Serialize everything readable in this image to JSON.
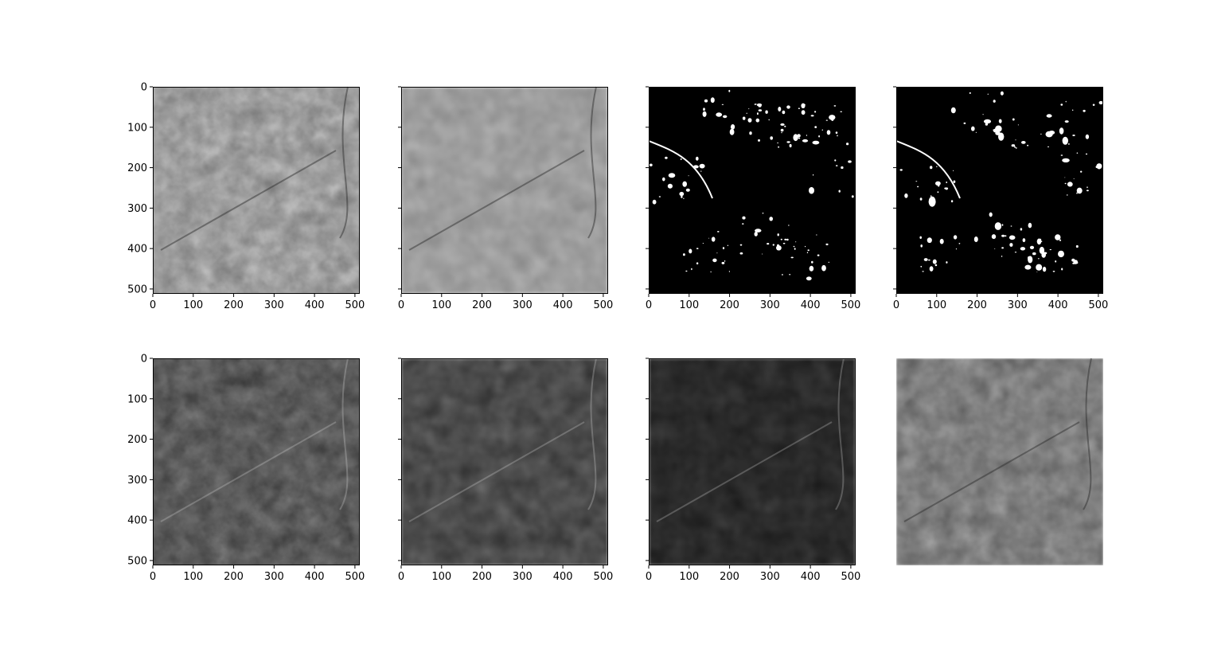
{
  "chart_data": [
    {
      "type": "heatmap",
      "colormap": "gray",
      "row": 1,
      "col": 1,
      "content": "grayscale satellite image (high detail)",
      "xlim": [
        0,
        512
      ],
      "ylim": [
        512,
        0
      ],
      "xticks": [
        0,
        100,
        200,
        300,
        400,
        500
      ],
      "yticks": [
        0,
        100,
        200,
        300,
        400,
        500
      ],
      "show_xticklabels": true,
      "show_yticklabels": true,
      "show_axes": true,
      "tone": {
        "mean": 0.62,
        "contrast": 0.26,
        "blur": 0.8
      }
    },
    {
      "type": "heatmap",
      "colormap": "gray",
      "row": 1,
      "col": 2,
      "content": "grayscale satellite image (smoothed)",
      "xlim": [
        0,
        512
      ],
      "ylim": [
        512,
        0
      ],
      "xticks": [
        0,
        100,
        200,
        300,
        400,
        500
      ],
      "yticks": [
        0,
        100,
        200,
        300,
        400,
        500
      ],
      "show_xticklabels": true,
      "show_yticklabels": false,
      "show_axes": true,
      "tone": {
        "mean": 0.62,
        "contrast": 0.16,
        "blur": 2.0
      }
    },
    {
      "type": "heatmap",
      "colormap": "gray",
      "row": 1,
      "col": 3,
      "content": "binary mask, sparse white patches on black",
      "xlim": [
        0,
        512
      ],
      "ylim": [
        512,
        0
      ],
      "xticks": [
        0,
        100,
        200,
        300,
        400,
        500
      ],
      "yticks": [
        0,
        100,
        200,
        300,
        400,
        500
      ],
      "show_xticklabels": true,
      "show_yticklabels": false,
      "show_axes": true,
      "mask": true
    },
    {
      "type": "heatmap",
      "colormap": "gray",
      "row": 1,
      "col": 4,
      "content": "binary mask, sparse white patches on black",
      "xlim": [
        0,
        512
      ],
      "ylim": [
        512,
        0
      ],
      "xticks": [
        0,
        100,
        200,
        300,
        400,
        500
      ],
      "yticks": [
        0,
        100,
        200,
        300,
        400,
        500
      ],
      "show_xticklabels": true,
      "show_yticklabels": false,
      "show_axes": true,
      "mask": true
    },
    {
      "type": "heatmap",
      "colormap": "gray",
      "row": 2,
      "col": 1,
      "content": "grayscale satellite image (dark, detailed)",
      "xlim": [
        0,
        512
      ],
      "ylim": [
        512,
        0
      ],
      "xticks": [
        0,
        100,
        200,
        300,
        400,
        500
      ],
      "yticks": [
        0,
        100,
        200,
        300,
        400,
        500
      ],
      "show_xticklabels": true,
      "show_yticklabels": true,
      "show_axes": true,
      "tone": {
        "mean": 0.36,
        "contrast": 0.24,
        "blur": 0.8
      }
    },
    {
      "type": "heatmap",
      "colormap": "gray",
      "row": 2,
      "col": 2,
      "content": "grayscale satellite image (dark, smoothed)",
      "xlim": [
        0,
        512
      ],
      "ylim": [
        512,
        0
      ],
      "xticks": [
        0,
        100,
        200,
        300,
        400,
        500
      ],
      "yticks": [
        0,
        100,
        200,
        300,
        400,
        500
      ],
      "show_xticklabels": true,
      "show_yticklabels": false,
      "show_axes": true,
      "tone": {
        "mean": 0.3,
        "contrast": 0.2,
        "blur": 1.8
      }
    },
    {
      "type": "heatmap",
      "colormap": "gray",
      "row": 2,
      "col": 3,
      "content": "grayscale satellite image (very dark, smoothed)",
      "xlim": [
        0,
        512
      ],
      "ylim": [
        512,
        0
      ],
      "xticks": [
        0,
        100,
        200,
        300,
        400,
        500
      ],
      "yticks": [
        0,
        100,
        200,
        300,
        400,
        500
      ],
      "show_xticklabels": true,
      "show_yticklabels": false,
      "show_axes": true,
      "tone": {
        "mean": 0.17,
        "contrast": 0.13,
        "blur": 1.8
      }
    },
    {
      "type": "heatmap",
      "colormap": "gray",
      "row": 2,
      "col": 4,
      "content": "grayscale satellite image (mid-tone), no axes",
      "xlim": [
        0,
        512
      ],
      "ylim": [
        512,
        0
      ],
      "show_xticklabels": false,
      "show_yticklabels": false,
      "show_axes": false,
      "tone": {
        "mean": 0.5,
        "contrast": 0.24,
        "blur": 1.3
      }
    }
  ]
}
